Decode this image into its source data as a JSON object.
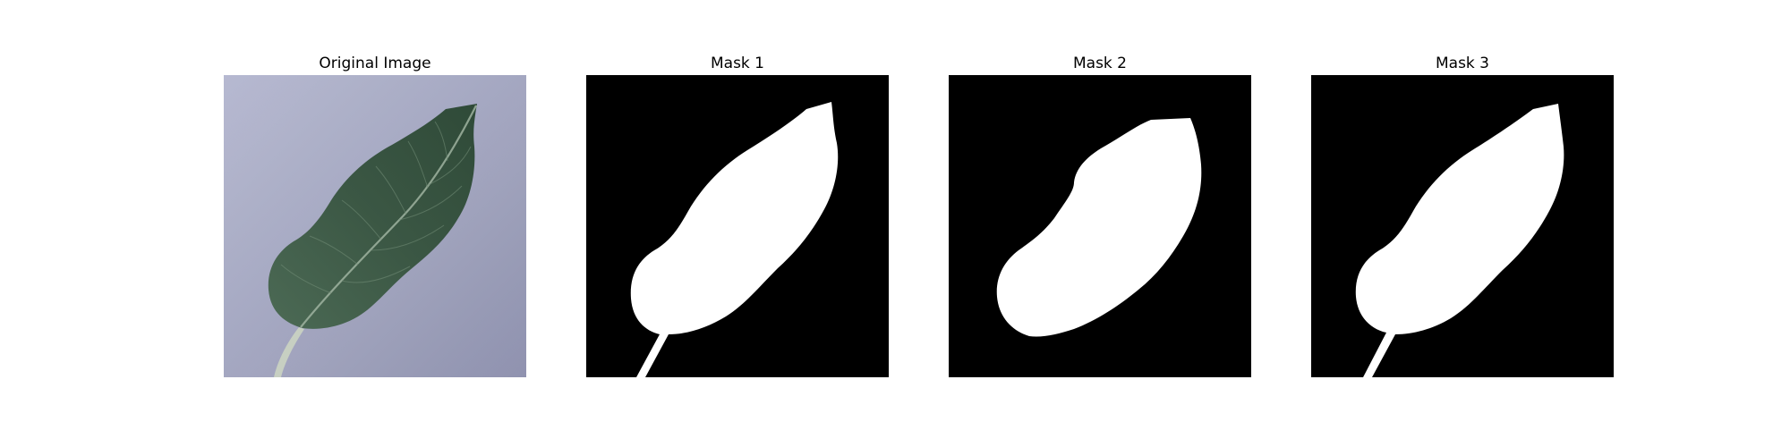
{
  "figure": {
    "panels": [
      {
        "title": "Original Image"
      },
      {
        "title": "Mask 1"
      },
      {
        "title": "Mask 2"
      },
      {
        "title": "Mask 3"
      }
    ]
  },
  "colors": {
    "mask_background": "#000000",
    "mask_foreground": "#ffffff",
    "photo_backdrop": "#a9abc4",
    "leaf_green": "#3d5a46",
    "leaf_vein": "#9fb3a0"
  },
  "icons": [
    "leaf-photo",
    "leaf-mask"
  ]
}
